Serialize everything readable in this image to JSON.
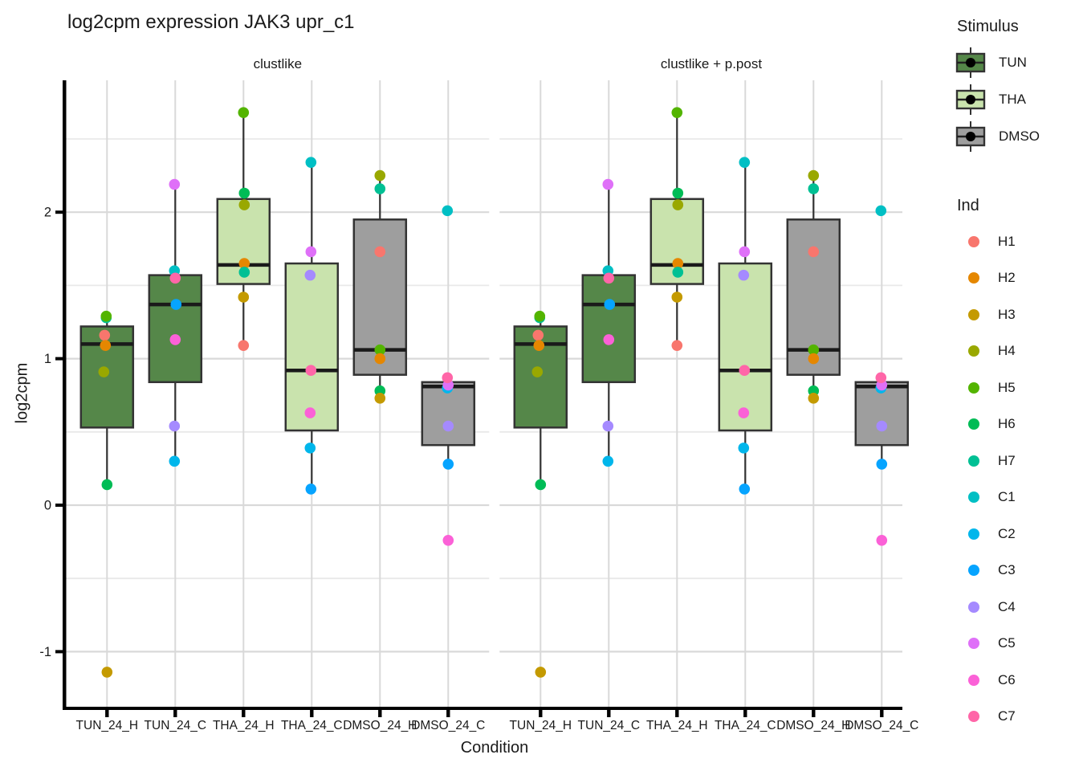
{
  "title": "log2cpm expression JAK3 upr_c1",
  "axes": {
    "y_label": "log2cpm",
    "x_label": "Condition",
    "y_tick_labels": [
      "-1",
      "0",
      "1",
      "2"
    ],
    "x_tick_labels": [
      "TUN_24_H",
      "TUN_24_C",
      "THA_24_H",
      "THA_24_C",
      "DMSO_24_H",
      "DMSO_24_C"
    ]
  },
  "facets": {
    "left": "clustlike",
    "right": "clustlike + p.post"
  },
  "legend": {
    "stimulus_title": "Stimulus",
    "stimulus_items": [
      {
        "label": "TUN",
        "fill": "#558749"
      },
      {
        "label": "THA",
        "fill": "#C9E3AD"
      },
      {
        "label": "DMSO",
        "fill": "#9E9E9E"
      }
    ],
    "ind_title": "Ind",
    "ind_items": [
      {
        "label": "H1",
        "color": "#F8766D"
      },
      {
        "label": "H2",
        "color": "#E58700"
      },
      {
        "label": "H3",
        "color": "#C49A00"
      },
      {
        "label": "H4",
        "color": "#99A800"
      },
      {
        "label": "H5",
        "color": "#53B400"
      },
      {
        "label": "H6",
        "color": "#00BC56"
      },
      {
        "label": "H7",
        "color": "#00C094"
      },
      {
        "label": "C1",
        "color": "#00BFC4"
      },
      {
        "label": "C2",
        "color": "#00B6EB"
      },
      {
        "label": "C3",
        "color": "#06A4FF"
      },
      {
        "label": "C4",
        "color": "#A58AFF"
      },
      {
        "label": "C5",
        "color": "#DF70F8"
      },
      {
        "label": "C6",
        "color": "#FB61D7"
      },
      {
        "label": "C7",
        "color": "#FF66A8"
      }
    ]
  },
  "chart_data": {
    "type": "boxplot",
    "title": "log2cpm expression JAK3 upr_c1",
    "xlabel": "Condition",
    "ylabel": "log2cpm",
    "facets": [
      "clustlike",
      "clustlike + p.post"
    ],
    "facets_note": "both facets display identical data",
    "y_ticks": [
      -1,
      0,
      1,
      2
    ],
    "y_minor_ticks": [
      -0.5,
      0.5,
      1.5,
      2.5
    ],
    "ylim": [
      -1.41,
      2.9
    ],
    "categories": [
      "TUN_24_H",
      "TUN_24_C",
      "THA_24_H",
      "THA_24_C",
      "DMSO_24_H",
      "DMSO_24_C"
    ],
    "groups": [
      {
        "condition": "TUN_24_H",
        "stimulus": "TUN",
        "box": {
          "q1": 0.53,
          "median": 1.1,
          "q3": 1.22,
          "whisker_low": 0.14,
          "whisker_high": 1.29
        },
        "points": [
          {
            "ind": "H7",
            "value": 1.28,
            "dx": -1
          },
          {
            "ind": "H5",
            "value": 1.29,
            "dx": -1
          },
          {
            "ind": "H1",
            "value": 1.16,
            "dx": -3
          },
          {
            "ind": "H2",
            "value": 1.09,
            "dx": -2
          },
          {
            "ind": "H4",
            "value": 0.91,
            "dx": -4
          },
          {
            "ind": "H6",
            "value": 0.14,
            "dx": 0
          },
          {
            "ind": "H3",
            "value": -1.14,
            "dx": 0
          }
        ]
      },
      {
        "condition": "TUN_24_C",
        "stimulus": "TUN",
        "box": {
          "q1": 0.84,
          "median": 1.37,
          "q3": 1.57,
          "whisker_low": 0.3,
          "whisker_high": 2.19
        },
        "points": [
          {
            "ind": "C5",
            "value": 2.19,
            "dx": -1
          },
          {
            "ind": "C1",
            "value": 1.6,
            "dx": -1
          },
          {
            "ind": "C7",
            "value": 1.55,
            "dx": 0
          },
          {
            "ind": "C3",
            "value": 1.37,
            "dx": 1
          },
          {
            "ind": "C6",
            "value": 1.13,
            "dx": 0
          },
          {
            "ind": "C4",
            "value": 0.54,
            "dx": -1
          },
          {
            "ind": "C2",
            "value": 0.3,
            "dx": -1
          }
        ]
      },
      {
        "condition": "THA_24_H",
        "stimulus": "THA",
        "box": {
          "q1": 1.51,
          "median": 1.64,
          "q3": 2.09,
          "whisker_low": 1.09,
          "whisker_high": 2.68
        },
        "points": [
          {
            "ind": "H5",
            "value": 2.68,
            "dx": 0
          },
          {
            "ind": "H6",
            "value": 2.13,
            "dx": 1
          },
          {
            "ind": "H4",
            "value": 2.05,
            "dx": 1
          },
          {
            "ind": "H2",
            "value": 1.65,
            "dx": 1
          },
          {
            "ind": "H7",
            "value": 1.59,
            "dx": 1
          },
          {
            "ind": "H3",
            "value": 1.42,
            "dx": 0
          },
          {
            "ind": "H1",
            "value": 1.09,
            "dx": 0
          }
        ]
      },
      {
        "condition": "THA_24_C",
        "stimulus": "THA",
        "box": {
          "q1": 0.51,
          "median": 0.92,
          "q3": 1.65,
          "whisker_low": 0.11,
          "whisker_high": 2.34
        },
        "points": [
          {
            "ind": "C1",
            "value": 2.34,
            "dx": -1
          },
          {
            "ind": "C5",
            "value": 1.73,
            "dx": -1
          },
          {
            "ind": "C4",
            "value": 1.57,
            "dx": -2
          },
          {
            "ind": "C7",
            "value": 0.92,
            "dx": -1
          },
          {
            "ind": "C6",
            "value": 0.63,
            "dx": -2
          },
          {
            "ind": "C2",
            "value": 0.39,
            "dx": -2
          },
          {
            "ind": "C3",
            "value": 0.11,
            "dx": -1
          }
        ]
      },
      {
        "condition": "DMSO_24_H",
        "stimulus": "DMSO",
        "box": {
          "q1": 0.89,
          "median": 1.06,
          "q3": 1.95,
          "whisker_low": 0.73,
          "whisker_high": 2.25
        },
        "points": [
          {
            "ind": "H4",
            "value": 2.25,
            "dx": 0
          },
          {
            "ind": "H7",
            "value": 2.16,
            "dx": 0
          },
          {
            "ind": "H1",
            "value": 1.73,
            "dx": 0
          },
          {
            "ind": "H5",
            "value": 1.06,
            "dx": 0
          },
          {
            "ind": "H2",
            "value": 1.0,
            "dx": 0
          },
          {
            "ind": "H6",
            "value": 0.78,
            "dx": 0
          },
          {
            "ind": "H3",
            "value": 0.73,
            "dx": 0
          }
        ]
      },
      {
        "condition": "DMSO_24_C",
        "stimulus": "DMSO",
        "box": {
          "q1": 0.41,
          "median": 0.81,
          "q3": 0.84,
          "whisker_low": 0.28,
          "whisker_high": 0.87
        },
        "points": [
          {
            "ind": "C2",
            "value": 0.8,
            "dx": -1
          },
          {
            "ind": "C5",
            "value": 0.82,
            "dx": 0
          },
          {
            "ind": "C7",
            "value": 0.87,
            "dx": -1
          },
          {
            "ind": "C4",
            "value": 0.54,
            "dx": 0
          },
          {
            "ind": "C3",
            "value": 0.28,
            "dx": 0
          },
          {
            "ind": "C1",
            "value": 2.01,
            "dx": -1
          },
          {
            "ind": "C6",
            "value": -0.24,
            "dx": 0
          }
        ]
      }
    ]
  }
}
